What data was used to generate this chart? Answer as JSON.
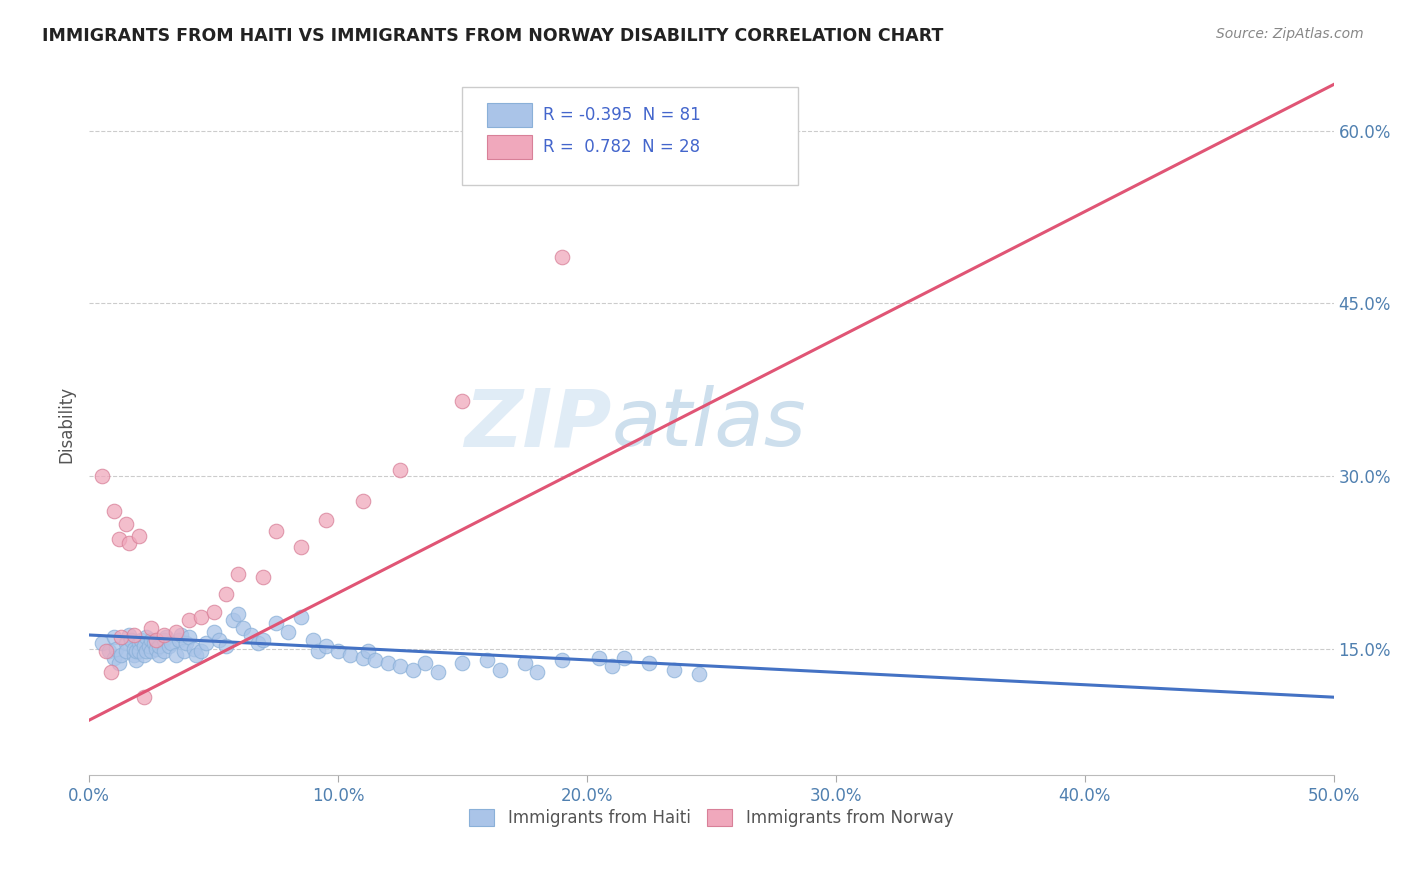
{
  "title": "IMMIGRANTS FROM HAITI VS IMMIGRANTS FROM NORWAY DISABILITY CORRELATION CHART",
  "source": "Source: ZipAtlas.com",
  "ylabel": "Disability",
  "xlabel": "",
  "xlim": [
    0.0,
    0.5
  ],
  "ylim": [
    0.04,
    0.65
  ],
  "xticks": [
    0.0,
    0.1,
    0.2,
    0.3,
    0.4,
    0.5
  ],
  "yticks": [
    0.15,
    0.3,
    0.45,
    0.6
  ],
  "ytick_labels": [
    "15.0%",
    "30.0%",
    "45.0%",
    "60.0%"
  ],
  "xtick_labels": [
    "0.0%",
    "10.0%",
    "20.0%",
    "30.0%",
    "40.0%",
    "50.0%"
  ],
  "haiti_color": "#aac4e8",
  "norway_color": "#f0a8bc",
  "haiti_line_color": "#4472c4",
  "norway_line_color": "#e05575",
  "haiti_R": -0.395,
  "haiti_N": 81,
  "norway_R": 0.782,
  "norway_N": 28,
  "legend_label_haiti": "Immigrants from Haiti",
  "legend_label_norway": "Immigrants from Norway",
  "watermark_zip": "ZIP",
  "watermark_atlas": "atlas",
  "haiti_scatter_x": [
    0.005,
    0.008,
    0.01,
    0.01,
    0.011,
    0.012,
    0.013,
    0.015,
    0.015,
    0.016,
    0.017,
    0.018,
    0.018,
    0.019,
    0.019,
    0.02,
    0.02,
    0.021,
    0.022,
    0.022,
    0.023,
    0.023,
    0.024,
    0.025,
    0.025,
    0.026,
    0.027,
    0.028,
    0.028,
    0.03,
    0.03,
    0.031,
    0.032,
    0.033,
    0.035,
    0.036,
    0.037,
    0.038,
    0.039,
    0.04,
    0.042,
    0.043,
    0.045,
    0.047,
    0.05,
    0.052,
    0.055,
    0.058,
    0.06,
    0.062,
    0.065,
    0.068,
    0.07,
    0.075,
    0.08,
    0.085,
    0.09,
    0.092,
    0.095,
    0.1,
    0.105,
    0.11,
    0.112,
    0.115,
    0.12,
    0.125,
    0.13,
    0.135,
    0.14,
    0.15,
    0.16,
    0.165,
    0.175,
    0.18,
    0.19,
    0.205,
    0.21,
    0.215,
    0.225,
    0.235,
    0.245
  ],
  "haiti_scatter_y": [
    0.155,
    0.148,
    0.16,
    0.142,
    0.15,
    0.138,
    0.145,
    0.155,
    0.148,
    0.162,
    0.158,
    0.145,
    0.15,
    0.14,
    0.148,
    0.155,
    0.148,
    0.158,
    0.152,
    0.145,
    0.16,
    0.148,
    0.152,
    0.158,
    0.148,
    0.155,
    0.15,
    0.145,
    0.152,
    0.158,
    0.148,
    0.16,
    0.152,
    0.155,
    0.145,
    0.158,
    0.162,
    0.148,
    0.155,
    0.16,
    0.15,
    0.145,
    0.148,
    0.155,
    0.165,
    0.158,
    0.152,
    0.175,
    0.18,
    0.168,
    0.162,
    0.155,
    0.158,
    0.172,
    0.165,
    0.178,
    0.158,
    0.148,
    0.152,
    0.148,
    0.145,
    0.142,
    0.148,
    0.14,
    0.138,
    0.135,
    0.132,
    0.138,
    0.13,
    0.138,
    0.14,
    0.132,
    0.138,
    0.13,
    0.14,
    0.142,
    0.135,
    0.142,
    0.138,
    0.132,
    0.128
  ],
  "norway_scatter_x": [
    0.005,
    0.007,
    0.009,
    0.01,
    0.012,
    0.013,
    0.015,
    0.016,
    0.018,
    0.02,
    0.022,
    0.025,
    0.027,
    0.03,
    0.035,
    0.04,
    0.045,
    0.05,
    0.055,
    0.06,
    0.07,
    0.075,
    0.085,
    0.095,
    0.11,
    0.125,
    0.15,
    0.19
  ],
  "norway_scatter_y": [
    0.3,
    0.148,
    0.13,
    0.27,
    0.245,
    0.16,
    0.258,
    0.242,
    0.162,
    0.248,
    0.108,
    0.168,
    0.158,
    0.162,
    0.165,
    0.175,
    0.178,
    0.182,
    0.198,
    0.215,
    0.212,
    0.252,
    0.238,
    0.262,
    0.278,
    0.305,
    0.365,
    0.49
  ],
  "haiti_line_x": [
    0.0,
    0.5
  ],
  "haiti_line_y": [
    0.162,
    0.108
  ],
  "norway_line_x": [
    0.0,
    0.5
  ],
  "norway_line_y": [
    0.088,
    0.64
  ]
}
